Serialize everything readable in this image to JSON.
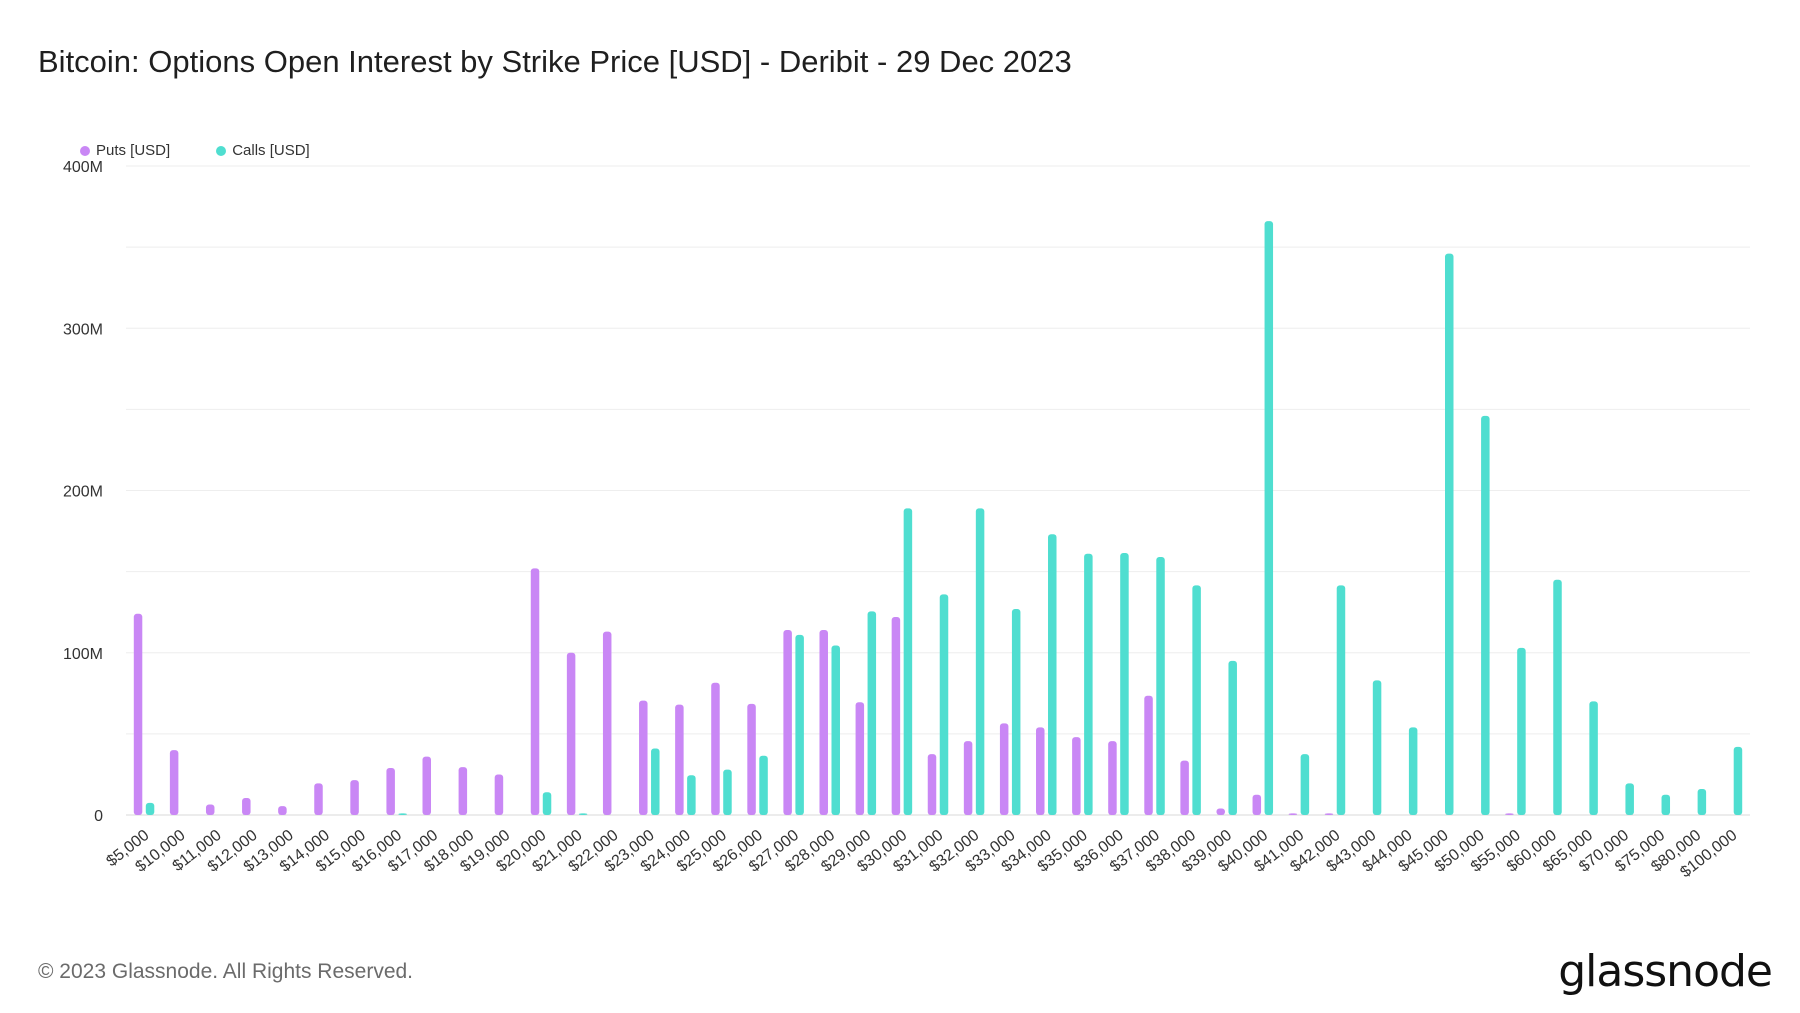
{
  "title": "Bitcoin: Options Open Interest by Strike Price [USD] - Deribit - 29 Dec 2023",
  "footer": "© 2023 Glassnode. All Rights Reserved.",
  "logo": "glassnode",
  "chart_data": {
    "type": "bar",
    "title": "Bitcoin: Options Open Interest by Strike Price [USD] - Deribit - 29 Dec 2023",
    "xlabel": "",
    "ylabel": "",
    "ylim": [
      0,
      400000000
    ],
    "y_ticks": [
      0,
      100000000,
      200000000,
      300000000,
      400000000
    ],
    "y_tick_labels": [
      "0",
      "100M",
      "200M",
      "300M",
      "400M"
    ],
    "grid": true,
    "legend_placement": "top-left",
    "categories": [
      "$5,000",
      "$10,000",
      "$11,000",
      "$12,000",
      "$13,000",
      "$14,000",
      "$15,000",
      "$16,000",
      "$17,000",
      "$18,000",
      "$19,000",
      "$20,000",
      "$21,000",
      "$22,000",
      "$23,000",
      "$24,000",
      "$25,000",
      "$26,000",
      "$27,000",
      "$28,000",
      "$29,000",
      "$30,000",
      "$31,000",
      "$32,000",
      "$33,000",
      "$34,000",
      "$35,000",
      "$36,000",
      "$37,000",
      "$38,000",
      "$39,000",
      "$40,000",
      "$41,000",
      "$42,000",
      "$43,000",
      "$44,000",
      "$45,000",
      "$50,000",
      "$55,000",
      "$60,000",
      "$65,000",
      "$70,000",
      "$75,000",
      "$80,000",
      "$100,000"
    ],
    "series": [
      {
        "name": "Puts [USD]",
        "color": "#c987f5",
        "values": [
          124000000,
          40000000,
          6500000,
          10500000,
          5500000,
          19500000,
          21500000,
          29000000,
          36000000,
          29500000,
          25000000,
          152000000,
          100000000,
          113000000,
          70500000,
          68000000,
          81500000,
          68500000,
          114000000,
          114000000,
          69500000,
          122000000,
          37500000,
          45500000,
          56500000,
          54000000,
          48000000,
          45500000,
          73500000,
          33500000,
          4000000,
          12500000,
          1000000,
          1000000,
          0,
          0,
          0,
          0,
          1000000,
          0,
          0,
          0,
          0,
          0,
          0
        ]
      },
      {
        "name": "Calls [USD]",
        "color": "#4fded0",
        "values": [
          7500000,
          0,
          0,
          0,
          0,
          0,
          0,
          1000000,
          0,
          0,
          0,
          14000000,
          1000000,
          0,
          41000000,
          24500000,
          28000000,
          36500000,
          111000000,
          104500000,
          125500000,
          189000000,
          136000000,
          189000000,
          127000000,
          173000000,
          161000000,
          161500000,
          159000000,
          141500000,
          95000000,
          366000000,
          37500000,
          141500000,
          83000000,
          54000000,
          346000000,
          246000000,
          103000000,
          145000000,
          70000000,
          19500000,
          12500000,
          16000000,
          42000000
        ]
      }
    ]
  }
}
